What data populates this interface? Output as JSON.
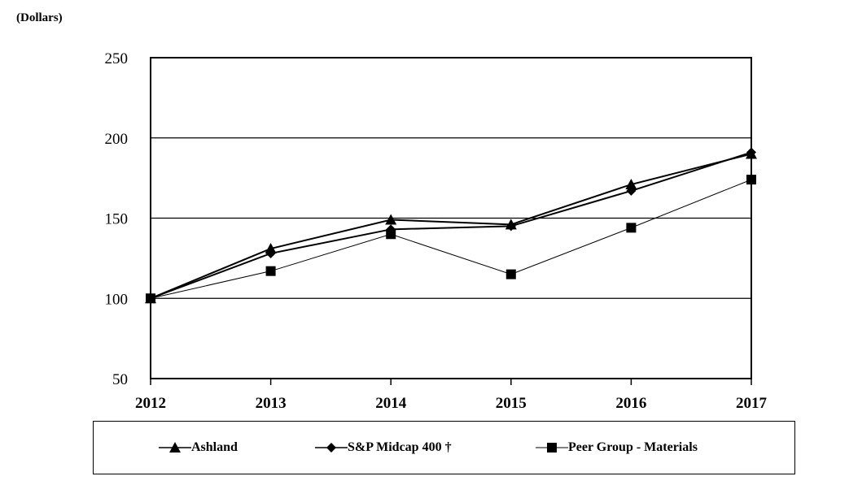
{
  "unit_label": "(Dollars)",
  "chart_data": {
    "type": "line",
    "title": "",
    "xlabel": "",
    "ylabel": "(Dollars)",
    "x": [
      "2012",
      "2013",
      "2014",
      "2015",
      "2016",
      "2017"
    ],
    "ylim": [
      50,
      250
    ],
    "yticks": [
      50,
      100,
      150,
      200,
      250
    ],
    "grid": "horizontal",
    "legend_position": "bottom",
    "series": [
      {
        "name": "Ashland",
        "marker": "triangle",
        "stroke": "#000000",
        "values": [
          100,
          131,
          149,
          146,
          171,
          190
        ]
      },
      {
        "name": "S&P Midcap 400 †",
        "marker": "diamond",
        "stroke": "#000000",
        "values": [
          100,
          128,
          143,
          145,
          167,
          191
        ]
      },
      {
        "name": "Peer Group - Materials",
        "marker": "square",
        "stroke": "#000000",
        "values": [
          100,
          117,
          140,
          115,
          144,
          174
        ]
      }
    ]
  },
  "colors": {
    "line": "#000000",
    "background": "#ffffff"
  }
}
